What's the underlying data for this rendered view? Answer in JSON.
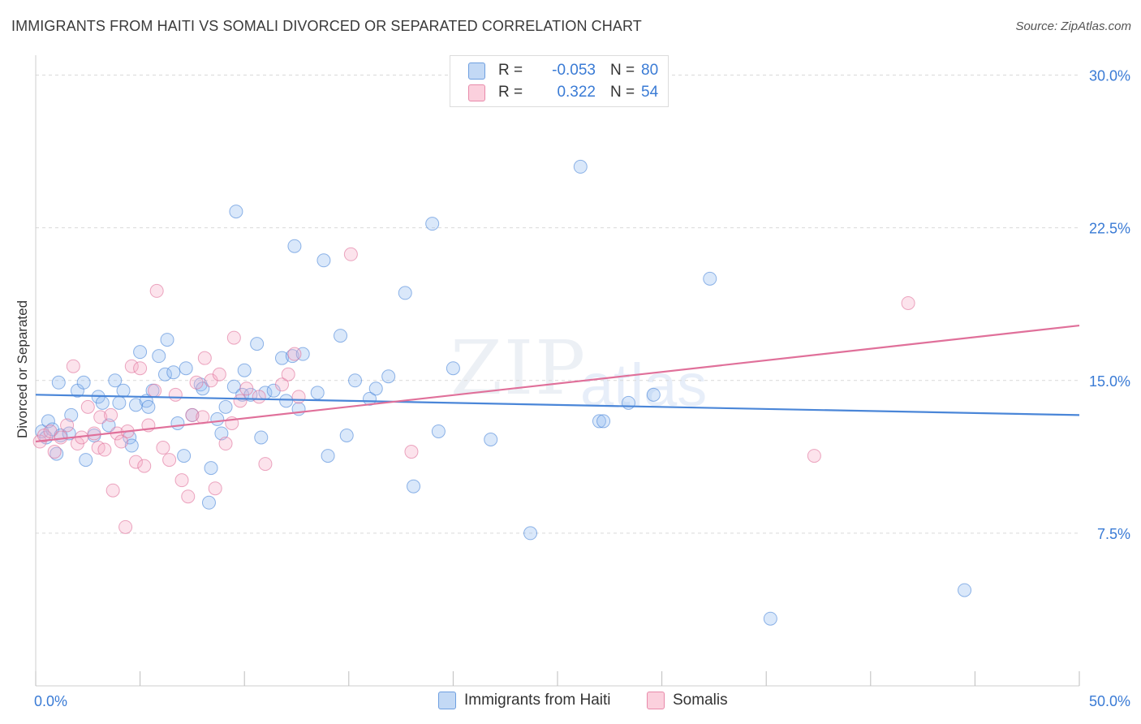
{
  "header": {
    "title": "IMMIGRANTS FROM HAITI VS SOMALI DIVORCED OR SEPARATED CORRELATION CHART",
    "source": "Source: ZipAtlas.com"
  },
  "watermark": {
    "part1": "ZIP",
    "part2": "atlas"
  },
  "legend_top": {
    "rows": [
      {
        "r_label": "R =",
        "r_value": "-0.053",
        "n_label": "N =",
        "n_value": "80",
        "color": "#a8c8f0"
      },
      {
        "r_label": "R =",
        "r_value": "0.322",
        "n_label": "N =",
        "n_value": "54",
        "color": "#f7b6c8"
      }
    ]
  },
  "legend_bottom": [
    {
      "label": "Immigrants from Haiti",
      "color": "#a8c8f0"
    },
    {
      "label": "Somalis",
      "color": "#f7b6c8"
    }
  ],
  "chart_data": {
    "type": "scatter",
    "ylabel": "Divorced or Separated",
    "x_tick_labels": [
      "0.0%",
      "50.0%"
    ],
    "y_tick_labels": [
      "7.5%",
      "15.0%",
      "22.5%",
      "30.0%"
    ],
    "xlim": [
      0,
      50
    ],
    "ylim": [
      0,
      30.5
    ],
    "y_ticks": [
      7.5,
      15.0,
      22.5,
      30.0
    ],
    "grid": "horizontal dashed",
    "series": [
      {
        "name": "Immigrants from Haiti",
        "color": "#4a86d8",
        "fill": "rgba(150,190,240,0.35)",
        "trend": {
          "x": [
            0,
            50
          ],
          "y": [
            14.3,
            13.3
          ]
        },
        "points": [
          [
            0.3,
            12.5
          ],
          [
            0.5,
            12.2
          ],
          [
            0.6,
            13.0
          ],
          [
            0.8,
            12.6
          ],
          [
            1.0,
            11.4
          ],
          [
            1.2,
            12.3
          ],
          [
            1.1,
            14.9
          ],
          [
            1.6,
            12.4
          ],
          [
            1.7,
            13.3
          ],
          [
            2.0,
            14.5
          ],
          [
            2.3,
            14.9
          ],
          [
            2.4,
            11.1
          ],
          [
            2.8,
            12.3
          ],
          [
            3.0,
            14.2
          ],
          [
            3.2,
            13.9
          ],
          [
            3.5,
            12.8
          ],
          [
            3.8,
            15.0
          ],
          [
            4.0,
            13.9
          ],
          [
            4.2,
            14.5
          ],
          [
            4.5,
            12.2
          ],
          [
            4.6,
            11.8
          ],
          [
            4.8,
            13.8
          ],
          [
            5.0,
            16.4
          ],
          [
            5.3,
            14.0
          ],
          [
            5.4,
            13.7
          ],
          [
            5.6,
            14.5
          ],
          [
            5.9,
            16.2
          ],
          [
            6.2,
            15.3
          ],
          [
            6.3,
            17.0
          ],
          [
            6.6,
            15.4
          ],
          [
            6.8,
            12.9
          ],
          [
            7.1,
            11.3
          ],
          [
            7.2,
            15.6
          ],
          [
            7.5,
            13.3
          ],
          [
            7.9,
            14.8
          ],
          [
            8.0,
            14.6
          ],
          [
            8.3,
            9.0
          ],
          [
            8.4,
            10.7
          ],
          [
            8.7,
            13.1
          ],
          [
            8.9,
            12.4
          ],
          [
            9.1,
            13.7
          ],
          [
            9.5,
            14.7
          ],
          [
            9.6,
            23.3
          ],
          [
            9.9,
            14.3
          ],
          [
            10.0,
            15.5
          ],
          [
            10.3,
            14.3
          ],
          [
            10.6,
            16.8
          ],
          [
            10.8,
            12.2
          ],
          [
            11.0,
            14.4
          ],
          [
            11.4,
            14.5
          ],
          [
            11.8,
            16.1
          ],
          [
            12.0,
            14.0
          ],
          [
            12.3,
            16.2
          ],
          [
            12.4,
            21.6
          ],
          [
            12.6,
            13.6
          ],
          [
            12.8,
            16.3
          ],
          [
            13.5,
            14.4
          ],
          [
            13.8,
            20.9
          ],
          [
            14.0,
            11.3
          ],
          [
            14.6,
            17.2
          ],
          [
            14.9,
            12.3
          ],
          [
            15.3,
            15.0
          ],
          [
            16.0,
            14.1
          ],
          [
            16.3,
            14.6
          ],
          [
            16.9,
            15.2
          ],
          [
            17.7,
            19.3
          ],
          [
            18.1,
            9.8
          ],
          [
            19.0,
            22.7
          ],
          [
            19.3,
            12.5
          ],
          [
            20.0,
            15.6
          ],
          [
            21.8,
            12.1
          ],
          [
            23.7,
            7.5
          ],
          [
            26.1,
            25.5
          ],
          [
            27.0,
            13.0
          ],
          [
            27.2,
            13.0
          ],
          [
            28.4,
            13.9
          ],
          [
            29.6,
            14.3
          ],
          [
            32.3,
            20.0
          ],
          [
            35.2,
            3.3
          ],
          [
            44.5,
            4.7
          ]
        ]
      },
      {
        "name": "Somalis",
        "color": "#e0709a",
        "fill": "rgba(245,175,200,0.35)",
        "trend": {
          "x": [
            0,
            50
          ],
          "y": [
            12.0,
            17.7
          ]
        },
        "points": [
          [
            0.2,
            12.0
          ],
          [
            0.4,
            12.3
          ],
          [
            0.7,
            12.5
          ],
          [
            0.9,
            11.5
          ],
          [
            1.2,
            12.2
          ],
          [
            1.5,
            12.8
          ],
          [
            1.8,
            15.7
          ],
          [
            2.0,
            11.9
          ],
          [
            2.2,
            12.2
          ],
          [
            2.5,
            13.7
          ],
          [
            2.8,
            12.4
          ],
          [
            3.0,
            11.7
          ],
          [
            3.1,
            13.2
          ],
          [
            3.3,
            11.6
          ],
          [
            3.6,
            13.3
          ],
          [
            3.7,
            9.6
          ],
          [
            3.9,
            12.4
          ],
          [
            4.1,
            12.0
          ],
          [
            4.3,
            7.8
          ],
          [
            4.4,
            12.5
          ],
          [
            4.6,
            15.7
          ],
          [
            4.8,
            11.0
          ],
          [
            5.0,
            15.6
          ],
          [
            5.2,
            10.8
          ],
          [
            5.4,
            12.8
          ],
          [
            5.7,
            14.5
          ],
          [
            5.8,
            19.4
          ],
          [
            6.1,
            11.7
          ],
          [
            6.4,
            11.1
          ],
          [
            6.7,
            14.3
          ],
          [
            7.0,
            10.1
          ],
          [
            7.3,
            9.3
          ],
          [
            7.5,
            13.3
          ],
          [
            7.7,
            14.9
          ],
          [
            8.0,
            13.2
          ],
          [
            8.1,
            16.1
          ],
          [
            8.4,
            15.0
          ],
          [
            8.6,
            9.7
          ],
          [
            8.8,
            15.3
          ],
          [
            9.1,
            11.9
          ],
          [
            9.4,
            12.9
          ],
          [
            9.5,
            17.1
          ],
          [
            9.8,
            14.0
          ],
          [
            10.1,
            14.6
          ],
          [
            10.7,
            14.2
          ],
          [
            11.0,
            10.9
          ],
          [
            11.8,
            14.8
          ],
          [
            12.1,
            15.3
          ],
          [
            12.4,
            16.3
          ],
          [
            12.6,
            14.2
          ],
          [
            15.1,
            21.2
          ],
          [
            18.0,
            11.5
          ],
          [
            37.3,
            11.3
          ],
          [
            41.8,
            18.8
          ]
        ]
      }
    ]
  }
}
